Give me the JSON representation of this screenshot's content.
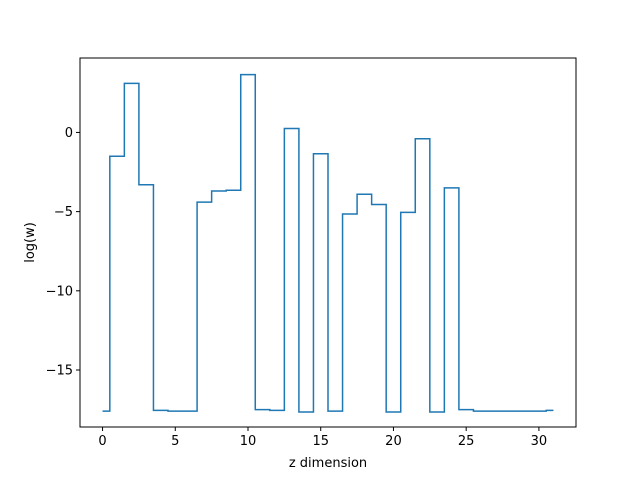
{
  "chart_data": {
    "type": "line",
    "drawstyle": "steps-mid",
    "title": "",
    "xlabel": "z dimension",
    "ylabel": "log(w)",
    "xlim": [
      -1.55,
      32.55
    ],
    "ylim": [
      -18.6,
      4.7
    ],
    "xticks": [
      0,
      5,
      10,
      15,
      20,
      25,
      30
    ],
    "yticks": [
      -15,
      -10,
      -5,
      0
    ],
    "xtick_labels": [
      "0",
      "5",
      "10",
      "15",
      "20",
      "25",
      "30"
    ],
    "ytick_labels": [
      "−15",
      "−10",
      "−5",
      "0"
    ],
    "grid": false,
    "legend": "none",
    "series": [
      {
        "color": "#1f77b4",
        "x": [
          0,
          1,
          2,
          3,
          4,
          5,
          6,
          7,
          8,
          9,
          10,
          11,
          12,
          13,
          14,
          15,
          16,
          17,
          18,
          19,
          20,
          21,
          22,
          23,
          24,
          25,
          26,
          27,
          28,
          29,
          30,
          31
        ],
        "y": [
          -17.6,
          -1.5,
          3.1,
          -3.3,
          -17.55,
          -17.6,
          -17.6,
          -4.4,
          -3.7,
          -3.65,
          3.65,
          -17.5,
          -17.55,
          0.25,
          -17.65,
          -1.35,
          -17.6,
          -5.15,
          -3.9,
          -4.55,
          -17.65,
          -5.05,
          -0.4,
          -17.65,
          -3.5,
          -17.5,
          -17.6,
          -17.6,
          -17.6,
          -17.6,
          -17.6,
          -17.55
        ]
      }
    ]
  }
}
